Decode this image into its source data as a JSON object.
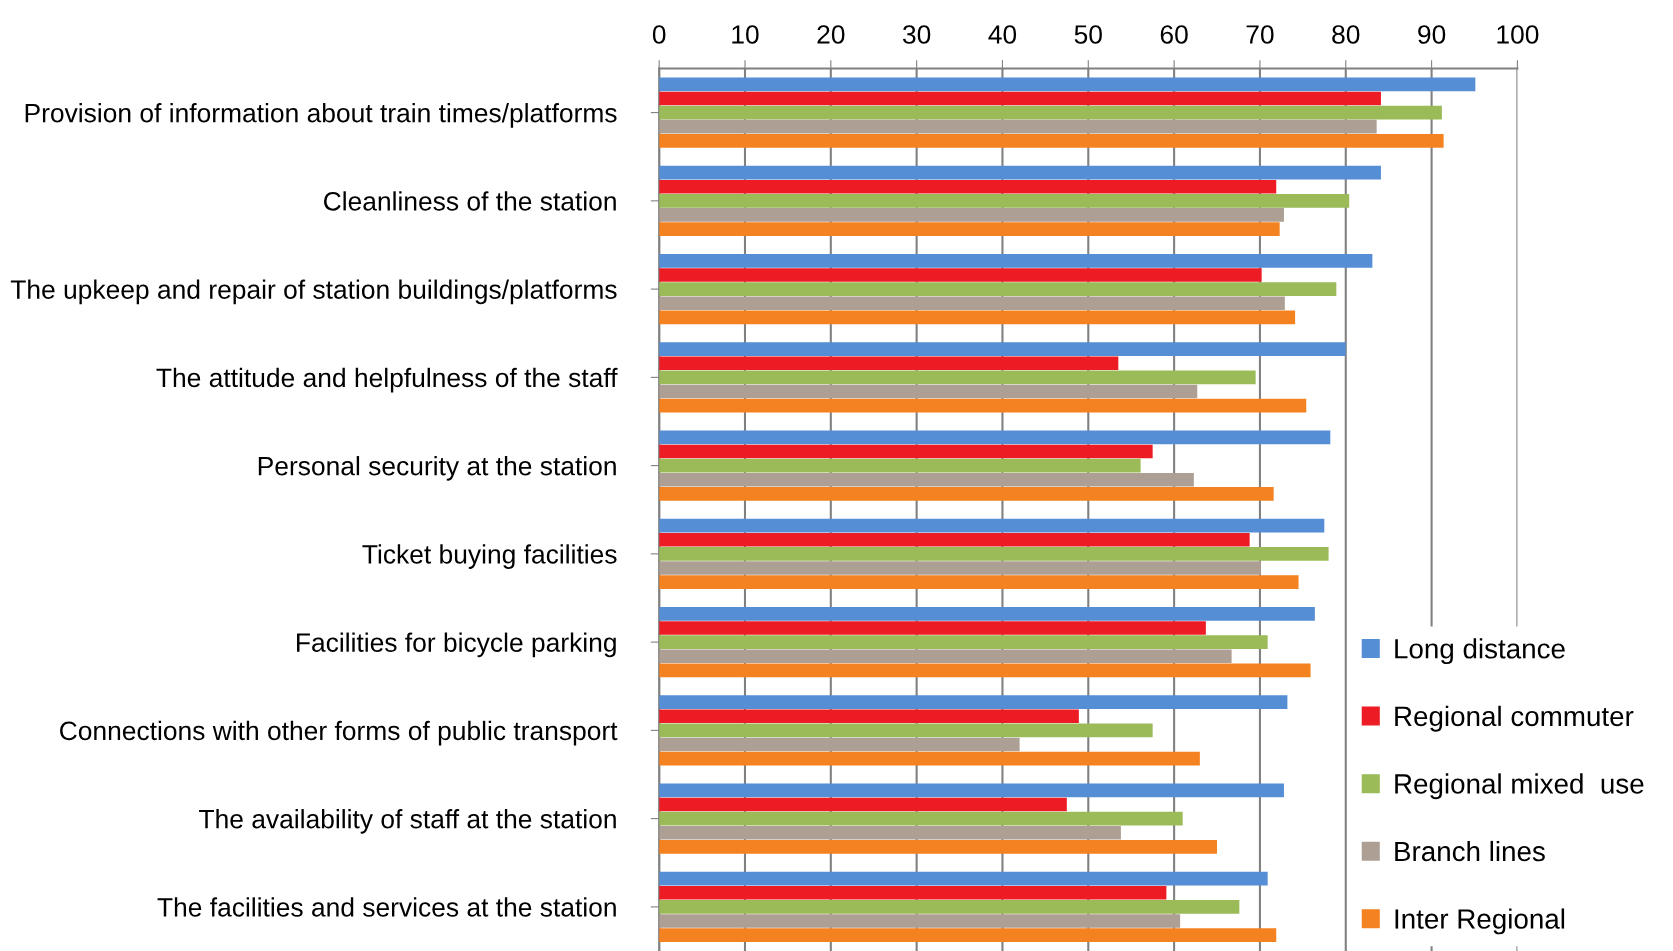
{
  "chart_data": {
    "type": "bar",
    "orientation": "horizontal",
    "categories": [
      "Provision of information about train times/platforms",
      "Cleanliness of the station",
      "The upkeep and repair of station buildings/platforms",
      "The attitude and helpfulness of the staff",
      "Personal security at the station",
      "Ticket buying facilities",
      "Facilities for bicycle parking",
      "Connections with other forms of public transport",
      "The availability of staff at the station",
      "The facilities and services at the station"
    ],
    "series": [
      {
        "name": "Long distance",
        "color": "#558ed5",
        "values": [
          95.1,
          84.1,
          83.1,
          80,
          78.2,
          77.5,
          76.4,
          73.2,
          72.8,
          70.9
        ]
      },
      {
        "name": "Regional commuter",
        "color": "#ed1c24",
        "values": [
          84.1,
          71.9,
          70.2,
          53.5,
          57.5,
          68.8,
          63.7,
          48.9,
          47.5,
          59.1
        ]
      },
      {
        "name": "Regional mixed  use",
        "color": "#9bbb59",
        "values": [
          91.2,
          80.4,
          78.9,
          69.5,
          56.1,
          78,
          70.9,
          57.5,
          61,
          67.6
        ]
      },
      {
        "name": "Branch lines",
        "color": "#ad9f94",
        "values": [
          83.6,
          72.8,
          72.9,
          62.7,
          62.3,
          70.1,
          66.7,
          42,
          53.8,
          60.7
        ]
      },
      {
        "name": "Inter Regional",
        "color": "#f58220",
        "values": [
          91.4,
          72.3,
          74.1,
          75.4,
          71.6,
          74.5,
          75.9,
          63,
          65,
          71.9
        ]
      }
    ],
    "xlim": [
      0,
      100
    ],
    "xticks": [
      0,
      10,
      20,
      30,
      40,
      50,
      60,
      70,
      80,
      90,
      100
    ],
    "grid": "x",
    "legend": "bottom right"
  }
}
